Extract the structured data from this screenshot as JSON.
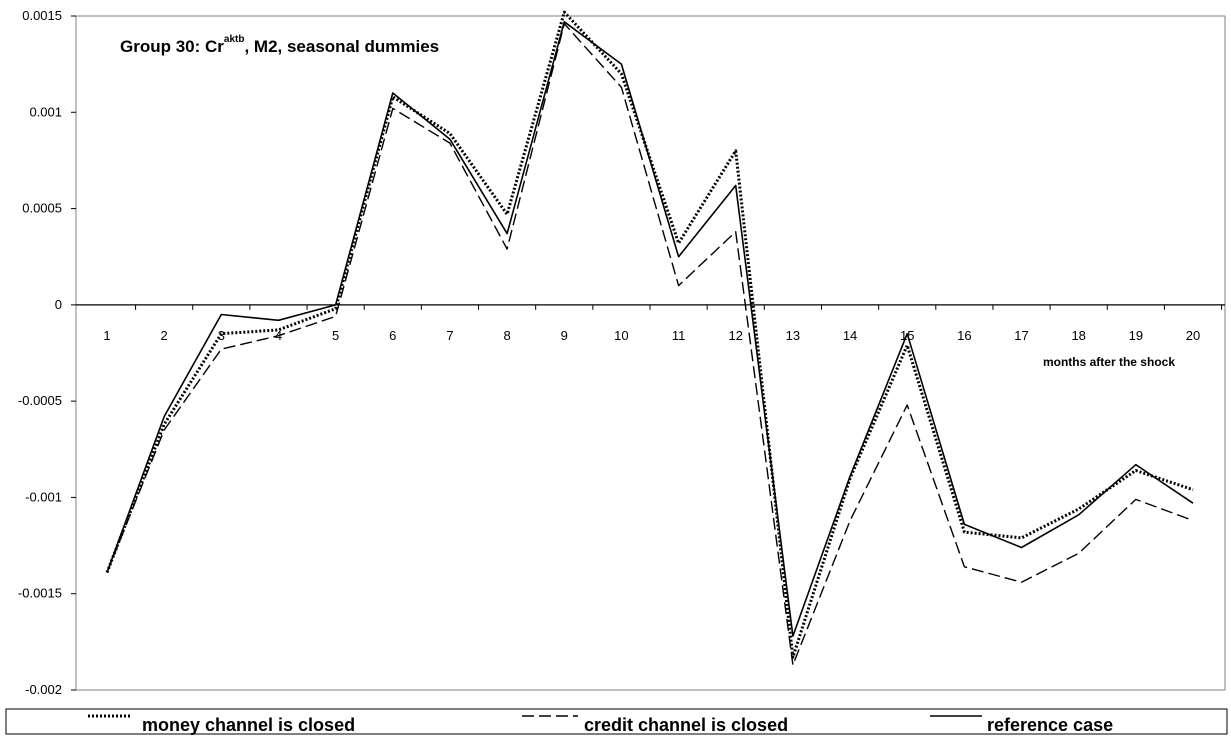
{
  "chart_data": {
    "type": "line",
    "title": {
      "prefix": "Group 30: Cr",
      "superscript": "aktb",
      "suffix": ", M2, seasonal dummies"
    },
    "xlabel": "months after the shock",
    "ylabel": "",
    "x": [
      1,
      2,
      3,
      4,
      5,
      6,
      7,
      8,
      9,
      10,
      11,
      12,
      13,
      14,
      15,
      16,
      17,
      18,
      19,
      20
    ],
    "x_tick_labels": [
      "1",
      "2",
      "3",
      "4",
      "5",
      "6",
      "7",
      "8",
      "9",
      "10",
      "11",
      "12",
      "13",
      "14",
      "15",
      "16",
      "17",
      "18",
      "19",
      "20"
    ],
    "ylim": [
      -0.002,
      0.0015
    ],
    "y_tick_values": [
      0.0015,
      0.001,
      0.0005,
      0,
      -0.0005,
      -0.001,
      -0.0015,
      -0.002
    ],
    "y_tick_labels": [
      "0.0015",
      "0.001",
      "0.0005",
      "0",
      "-0.0005",
      "-0.001",
      "-0.0015",
      "-0.002"
    ],
    "grid": false,
    "legend_position": "bottom",
    "series": [
      {
        "name": "money channel is closed",
        "style": "dotted",
        "values": [
          -0.00139,
          -0.00062,
          -0.00015,
          -0.00013,
          -2e-05,
          0.00108,
          0.00089,
          0.00047,
          0.00152,
          0.0012,
          0.00032,
          0.0008,
          -0.00183,
          -0.0009,
          -0.00021,
          -0.00118,
          -0.00121,
          -0.00106,
          -0.00086,
          -0.00096
        ]
      },
      {
        "name": "credit channel is closed",
        "style": "dashed",
        "values": [
          -0.00139,
          -0.00065,
          -0.00023,
          -0.00016,
          -6e-05,
          0.00102,
          0.00084,
          0.00029,
          0.00146,
          0.00113,
          0.0001,
          0.00038,
          -0.00187,
          -0.00112,
          -0.00052,
          -0.00136,
          -0.00144,
          -0.00129,
          -0.00101,
          -0.00112
        ]
      },
      {
        "name": "reference case",
        "style": "solid",
        "values": [
          -0.00139,
          -0.00058,
          -5e-05,
          -8e-05,
          0.0,
          0.0011,
          0.00086,
          0.00037,
          0.00147,
          0.00125,
          0.00025,
          0.00062,
          -0.00172,
          -0.00089,
          -0.00015,
          -0.00114,
          -0.00126,
          -0.00109,
          -0.00083,
          -0.00103
        ]
      }
    ]
  },
  "colors": {
    "line": "#000000",
    "background": "#ffffff"
  }
}
